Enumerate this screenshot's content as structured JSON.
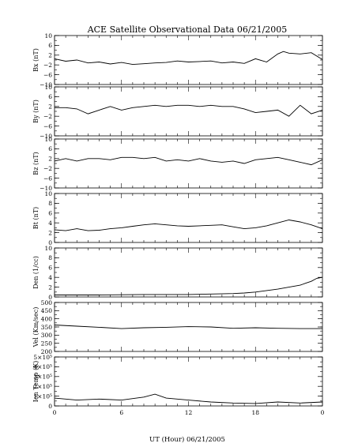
{
  "chart_data": {
    "type": "line",
    "title": "ACE Satellite Observational Data   06/21/2005",
    "xlabel": "UT (Hour)   06/21/2005",
    "x_ticks": [
      "0",
      "6",
      "12",
      "18",
      "0"
    ],
    "xlim": [
      0,
      24
    ],
    "grid": false,
    "color": "#000000",
    "panels": [
      {
        "ylabel": "Bx (nT)",
        "ylim": [
          -10,
          10
        ],
        "y_ticks": [
          {
            "v": 10,
            "t": "10"
          },
          {
            "v": 6,
            "t": "6"
          },
          {
            "v": 2,
            "t": "2"
          },
          {
            "v": -2,
            "t": "−2"
          },
          {
            "v": -6,
            "t": "−6"
          },
          {
            "v": -10,
            "t": "−10"
          }
        ],
        "series": {
          "x": [
            0,
            1,
            2,
            3,
            4,
            5,
            6,
            7,
            8,
            9,
            10,
            11,
            12,
            13,
            14,
            15,
            16,
            17,
            18,
            19,
            20,
            20.5,
            21,
            22,
            23,
            24
          ],
          "y": [
            0.5,
            -0.5,
            0,
            -1.2,
            -0.8,
            -1.6,
            -1,
            -1.8,
            -1.5,
            -1.2,
            -1.0,
            -0.4,
            -0.8,
            -0.6,
            -0.4,
            -1.2,
            -0.8,
            -1.4,
            0.5,
            -0.8,
            2.5,
            3.5,
            2.8,
            2.5,
            3.0,
            0.2
          ]
        }
      },
      {
        "ylabel": "By (nT)",
        "ylim": [
          -10,
          10
        ],
        "y_ticks": [
          {
            "v": 10,
            "t": "10"
          },
          {
            "v": 6,
            "t": "6"
          },
          {
            "v": 2,
            "t": "2"
          },
          {
            "v": -2,
            "t": "−2"
          },
          {
            "v": -6,
            "t": "−6"
          },
          {
            "v": -10,
            "t": "−10"
          }
        ],
        "series": {
          "x": [
            0,
            1,
            2,
            3,
            4,
            5,
            6,
            7,
            8,
            9,
            10,
            11,
            12,
            13,
            14,
            15,
            16,
            17,
            18,
            19,
            20,
            21,
            22,
            23,
            24
          ],
          "y": [
            1.5,
            1.5,
            1.0,
            -1.0,
            0.5,
            2.0,
            0.5,
            1.5,
            2.0,
            2.5,
            2.0,
            2.5,
            2.5,
            2.0,
            2.5,
            2.0,
            2.0,
            1.0,
            -0.5,
            0,
            0.5,
            -2.0,
            2.5,
            -1.0,
            0.5
          ]
        }
      },
      {
        "ylabel": "Bz (nT)",
        "ylim": [
          -10,
          10
        ],
        "y_ticks": [
          {
            "v": 10,
            "t": "10"
          },
          {
            "v": 6,
            "t": "6"
          },
          {
            "v": 2,
            "t": "2"
          },
          {
            "v": -2,
            "t": "−2"
          },
          {
            "v": -6,
            "t": "−6"
          },
          {
            "v": -10,
            "t": "−10"
          }
        ],
        "series": {
          "x": [
            0,
            1,
            2,
            3,
            4,
            5,
            6,
            7,
            8,
            9,
            10,
            11,
            12,
            13,
            14,
            15,
            16,
            17,
            18,
            19,
            20,
            21,
            22,
            23,
            24
          ],
          "y": [
            1.0,
            2.0,
            1.0,
            2.0,
            2.0,
            1.5,
            2.5,
            2.5,
            2.0,
            2.5,
            1.0,
            1.5,
            1.0,
            2.0,
            1.0,
            0.5,
            1.0,
            0,
            1.5,
            2.0,
            2.5,
            1.5,
            0.5,
            -0.5,
            1.5
          ]
        }
      },
      {
        "ylabel": "Bt (nT)",
        "ylim": [
          0,
          10
        ],
        "y_ticks": [
          {
            "v": 10,
            "t": "10"
          },
          {
            "v": 8,
            "t": "8"
          },
          {
            "v": 6,
            "t": "6"
          },
          {
            "v": 4,
            "t": "4"
          },
          {
            "v": 2,
            "t": "2"
          },
          {
            "v": 0,
            "t": "0"
          }
        ],
        "series": {
          "x": [
            0,
            1,
            2,
            3,
            4,
            5,
            6,
            7,
            8,
            9,
            10,
            11,
            12,
            13,
            14,
            15,
            16,
            17,
            18,
            19,
            20,
            21,
            22,
            23,
            24
          ],
          "y": [
            2.6,
            2.4,
            2.8,
            2.4,
            2.5,
            2.8,
            3.0,
            3.3,
            3.6,
            3.8,
            3.6,
            3.4,
            3.3,
            3.4,
            3.5,
            3.6,
            3.2,
            2.8,
            3.0,
            3.4,
            4.0,
            4.6,
            4.2,
            3.6,
            2.8
          ]
        }
      },
      {
        "ylabel": "Den (1/cc)",
        "ylim": [
          0,
          10
        ],
        "y_ticks": [
          {
            "v": 10,
            "t": "10"
          },
          {
            "v": 8,
            "t": "8"
          },
          {
            "v": 6,
            "t": "6"
          },
          {
            "v": 4,
            "t": "4"
          },
          {
            "v": 2,
            "t": "2"
          },
          {
            "v": 0,
            "t": "0"
          }
        ],
        "series": {
          "x": [
            0,
            2,
            4,
            6,
            8,
            10,
            12,
            14,
            16,
            17,
            18,
            19,
            20,
            21,
            22,
            22.5,
            23,
            23.5,
            24
          ],
          "y": [
            0.4,
            0.4,
            0.4,
            0.45,
            0.5,
            0.5,
            0.5,
            0.6,
            0.7,
            0.8,
            1.0,
            1.3,
            1.6,
            2.0,
            2.4,
            2.8,
            3.2,
            3.8,
            4.0
          ]
        }
      },
      {
        "ylabel": "Vel (Km/sec)",
        "ylim": [
          200,
          500
        ],
        "y_ticks": [
          {
            "v": 500,
            "t": "500"
          },
          {
            "v": 450,
            "t": "450"
          },
          {
            "v": 400,
            "t": "400"
          },
          {
            "v": 350,
            "t": "350"
          },
          {
            "v": 300,
            "t": "300"
          },
          {
            "v": 250,
            "t": "250"
          },
          {
            "v": 200,
            "t": "200"
          }
        ],
        "series": {
          "x": [
            0,
            2,
            4,
            6,
            8,
            10,
            12,
            14,
            16,
            18,
            20,
            22,
            24
          ],
          "y": [
            362,
            355,
            348,
            340,
            345,
            348,
            352,
            350,
            342,
            345,
            342,
            340,
            340
          ]
        }
      },
      {
        "ylabel": "Ion Temp (K)",
        "ylim": [
          0,
          500000
        ],
        "y_ticks": [
          {
            "v": 500000,
            "t": "5×10⁵"
          },
          {
            "v": 400000,
            "t": "4×10⁵"
          },
          {
            "v": 300000,
            "t": "3×10⁵"
          },
          {
            "v": 200000,
            "t": "2×10⁵"
          },
          {
            "v": 100000,
            "t": "1×10⁵"
          },
          {
            "v": 0,
            "t": "0"
          }
        ],
        "series": {
          "x": [
            0,
            2,
            4,
            6,
            8,
            9,
            10,
            12,
            14,
            16,
            18,
            20,
            22,
            24
          ],
          "y": [
            80000,
            60000,
            70000,
            60000,
            90000,
            120000,
            80000,
            60000,
            40000,
            30000,
            25000,
            40000,
            30000,
            40000
          ]
        }
      }
    ]
  }
}
